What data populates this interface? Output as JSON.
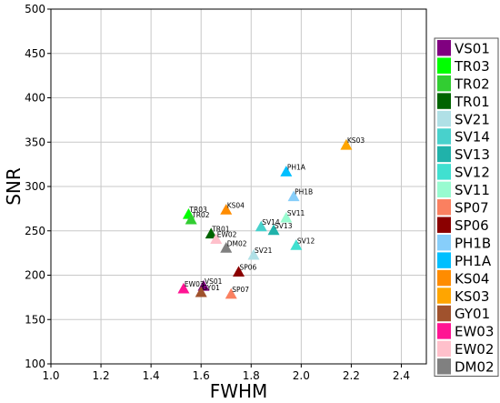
{
  "chart_data": {
    "type": "scatter",
    "xlabel": "FWHM",
    "ylabel": "SNR",
    "xlim": [
      1.0,
      2.5
    ],
    "ylim": [
      100,
      500
    ],
    "xticks": [
      "1.0",
      "1.2",
      "1.4",
      "1.6",
      "1.8",
      "2.0",
      "2.2",
      "2.4"
    ],
    "xtick_values": [
      1.0,
      1.2,
      1.4,
      1.6,
      1.8,
      2.0,
      2.2,
      2.4
    ],
    "yticks": [
      "100",
      "150",
      "200",
      "250",
      "300",
      "350",
      "400",
      "450",
      "500"
    ],
    "ytick_values": [
      100,
      150,
      200,
      250,
      300,
      350,
      400,
      450,
      500
    ],
    "grid": true,
    "marker": "triangle",
    "legend_position": "right",
    "series": [
      {
        "name": "VS01",
        "color": "#800080",
        "x": 1.61,
        "y": 187
      },
      {
        "name": "TR03",
        "color": "#00ff00",
        "x": 1.55,
        "y": 268
      },
      {
        "name": "TR02",
        "color": "#32cd32",
        "x": 1.56,
        "y": 262
      },
      {
        "name": "TR01",
        "color": "#006400",
        "x": 1.64,
        "y": 246
      },
      {
        "name": "SV21",
        "color": "#b0e0e6",
        "x": 1.81,
        "y": 222
      },
      {
        "name": "SV14",
        "color": "#48d1cc",
        "x": 1.84,
        "y": 254
      },
      {
        "name": "SV13",
        "color": "#20b2aa",
        "x": 1.89,
        "y": 250
      },
      {
        "name": "SV12",
        "color": "#40e0d0",
        "x": 1.98,
        "y": 233
      },
      {
        "name": "SV11",
        "color": "#98fbd0",
        "x": 1.94,
        "y": 264
      },
      {
        "name": "SP07",
        "color": "#fa8060",
        "x": 1.72,
        "y": 178
      },
      {
        "name": "SP06",
        "color": "#8b0000",
        "x": 1.75,
        "y": 203
      },
      {
        "name": "PH1B",
        "color": "#87cefa",
        "x": 1.97,
        "y": 288
      },
      {
        "name": "PH1A",
        "color": "#00bfff",
        "x": 1.94,
        "y": 316
      },
      {
        "name": "KS04",
        "color": "#ff8c00",
        "x": 1.7,
        "y": 273
      },
      {
        "name": "KS03",
        "color": "#ffa500",
        "x": 2.18,
        "y": 346
      },
      {
        "name": "GY01",
        "color": "#a0522d",
        "x": 1.6,
        "y": 180
      },
      {
        "name": "EW03",
        "color": "#ff1493",
        "x": 1.53,
        "y": 184
      },
      {
        "name": "EW02",
        "color": "#ffc0cb",
        "x": 1.66,
        "y": 240
      },
      {
        "name": "DM02",
        "color": "#808080",
        "x": 1.7,
        "y": 230
      }
    ]
  }
}
